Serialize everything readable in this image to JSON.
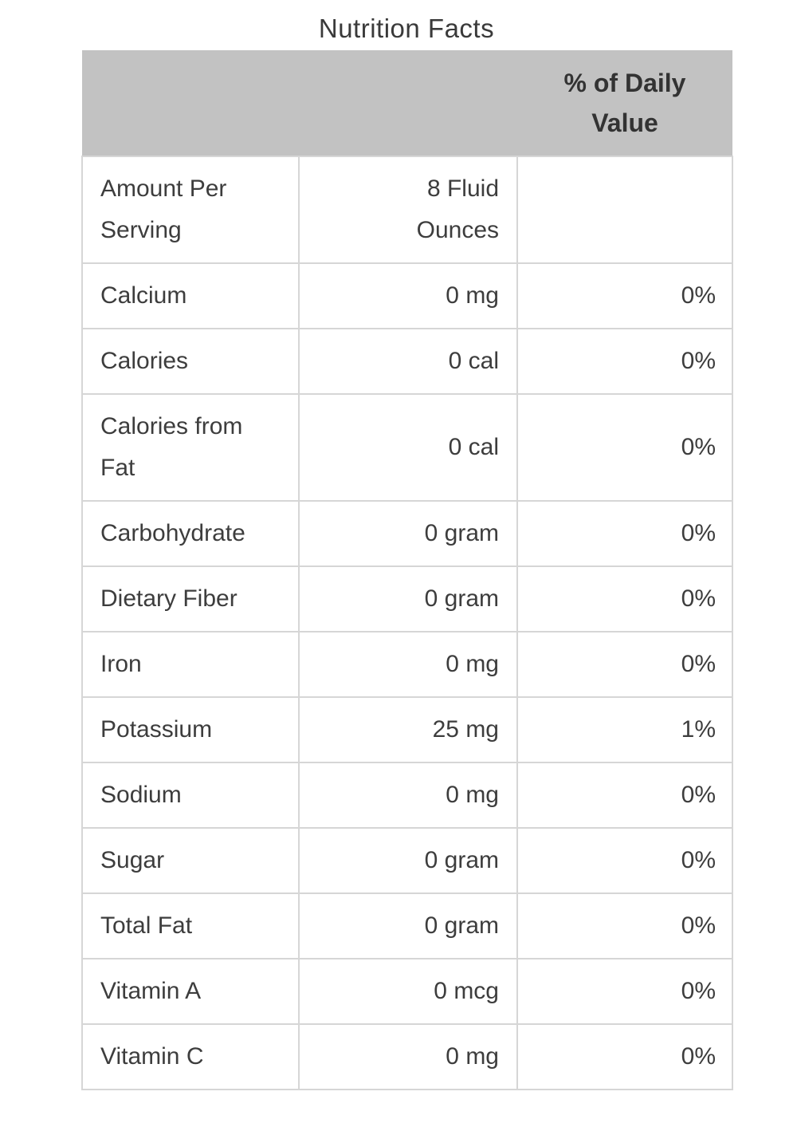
{
  "title": "Nutrition Facts",
  "table": {
    "header": {
      "col1": "",
      "col2": "",
      "col3": "% of Daily\nValue"
    },
    "rows": [
      {
        "label": "Amount Per\nServing",
        "value": "8 Fluid\nOunces",
        "percent": ""
      },
      {
        "label": "Calcium",
        "value": "0 mg",
        "percent": "0%"
      },
      {
        "label": "Calories",
        "value": "0 cal",
        "percent": "0%"
      },
      {
        "label": "Calories from\nFat",
        "value": "0 cal",
        "percent": "0%"
      },
      {
        "label": "Carbohydrate",
        "value": "0 gram",
        "percent": "0%"
      },
      {
        "label": "Dietary Fiber",
        "value": "0 gram",
        "percent": "0%"
      },
      {
        "label": "Iron",
        "value": "0 mg",
        "percent": "0%"
      },
      {
        "label": "Potassium",
        "value": "25 mg",
        "percent": "1%"
      },
      {
        "label": "Sodium",
        "value": "0 mg",
        "percent": "0%"
      },
      {
        "label": "Sugar",
        "value": "0 gram",
        "percent": "0%"
      },
      {
        "label": "Total Fat",
        "value": "0 gram",
        "percent": "0%"
      },
      {
        "label": "Vitamin A",
        "value": "0 mcg",
        "percent": "0%"
      },
      {
        "label": "Vitamin C",
        "value": "0 mg",
        "percent": "0%"
      }
    ],
    "colors": {
      "header_bg": "#c2c2c2",
      "border": "#d6d6d6",
      "text": "#3d3d3d"
    }
  }
}
